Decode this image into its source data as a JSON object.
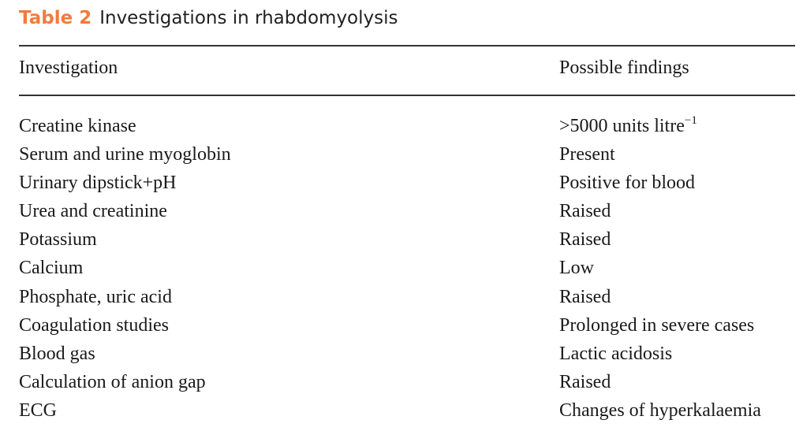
{
  "caption": {
    "label": "Table 2",
    "title": "Investigations in rhabdomyolysis",
    "label_color": "#F47B3A"
  },
  "columns": {
    "investigation": "Investigation",
    "findings": "Possible findings"
  },
  "rows": [
    {
      "investigation": "Creatine kinase",
      "finding": ">5000 units litre",
      "finding_sup": "−1"
    },
    {
      "investigation": "Serum and urine myoglobin",
      "finding": "Present"
    },
    {
      "investigation": "Urinary dipstick+pH",
      "finding": "Positive for blood"
    },
    {
      "investigation": "Urea and creatinine",
      "finding": "Raised"
    },
    {
      "investigation": "Potassium",
      "finding": "Raised"
    },
    {
      "investigation": "Calcium",
      "finding": "Low"
    },
    {
      "investigation": "Phosphate, uric acid",
      "finding": "Raised"
    },
    {
      "investigation": "Coagulation studies",
      "finding": "Prolonged in severe cases"
    },
    {
      "investigation": "Blood gas",
      "finding": "Lactic acidosis"
    },
    {
      "investigation": "Calculation of anion gap",
      "finding": "Raised"
    },
    {
      "investigation": "ECG",
      "finding": "Changes of hyperkalaemia"
    }
  ]
}
